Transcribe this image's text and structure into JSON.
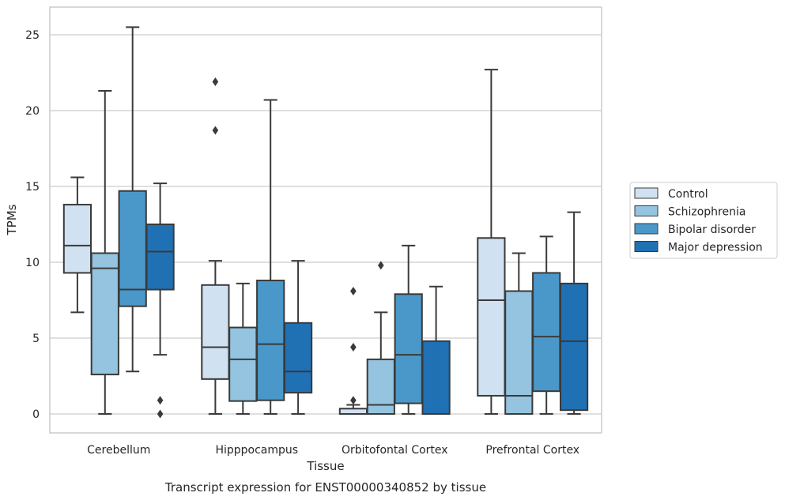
{
  "chart_data": {
    "type": "boxplot",
    "caption": "Transcript expression for ENST00000340852 by tissue",
    "xlabel": "Tissue",
    "ylabel": "TPMs",
    "ylim": [
      -1.2,
      26.8
    ],
    "yticks": [
      0,
      5,
      10,
      15,
      20,
      25
    ],
    "grid": "horizontal",
    "legend_position": "right",
    "categories": [
      "Cerebellum",
      "Hipppocampus",
      "Orbitofontal Cortex",
      "Prefrontal Cortex"
    ],
    "series": [
      {
        "name": "Control",
        "color": "#d0e1f2",
        "boxes": [
          {
            "whislo": 6.7,
            "q1": 9.3,
            "med": 11.1,
            "q3": 13.8,
            "whishi": 15.6,
            "fliers": []
          },
          {
            "whislo": 0.0,
            "q1": 2.3,
            "med": 4.4,
            "q3": 8.5,
            "whishi": 10.1,
            "fliers": [
              18.7,
              21.9
            ]
          },
          {
            "whislo": 0.0,
            "q1": 0.0,
            "med": 0.0,
            "q3": 0.35,
            "whishi": 0.6,
            "fliers": [
              0.9,
              4.4,
              8.1
            ]
          },
          {
            "whislo": 0.0,
            "q1": 1.2,
            "med": 7.5,
            "q3": 11.6,
            "whishi": 22.7,
            "fliers": []
          }
        ]
      },
      {
        "name": "Schizophrenia",
        "color": "#94c4df",
        "boxes": [
          {
            "whislo": 0.0,
            "q1": 2.6,
            "med": 9.6,
            "q3": 10.6,
            "whishi": 21.3,
            "fliers": []
          },
          {
            "whislo": 0.0,
            "q1": 0.85,
            "med": 3.6,
            "q3": 5.7,
            "whishi": 8.6,
            "fliers": []
          },
          {
            "whislo": 0.0,
            "q1": 0.0,
            "med": 0.6,
            "q3": 3.6,
            "whishi": 6.7,
            "fliers": [
              9.8
            ]
          },
          {
            "whislo": 0.0,
            "q1": 0.0,
            "med": 1.2,
            "q3": 8.1,
            "whishi": 10.6,
            "fliers": []
          }
        ]
      },
      {
        "name": "Bipolar disorder",
        "color": "#4a98c9",
        "boxes": [
          {
            "whislo": 2.8,
            "q1": 7.1,
            "med": 8.2,
            "q3": 14.7,
            "whishi": 25.5,
            "fliers": []
          },
          {
            "whislo": 0.0,
            "q1": 0.9,
            "med": 4.6,
            "q3": 8.8,
            "whishi": 20.7,
            "fliers": []
          },
          {
            "whislo": 0.0,
            "q1": 0.7,
            "med": 3.9,
            "q3": 7.9,
            "whishi": 11.1,
            "fliers": []
          },
          {
            "whislo": 0.0,
            "q1": 1.5,
            "med": 5.1,
            "q3": 9.3,
            "whishi": 11.7,
            "fliers": []
          }
        ]
      },
      {
        "name": "Major depression",
        "color": "#2070b4",
        "boxes": [
          {
            "whislo": 3.9,
            "q1": 8.2,
            "med": 10.7,
            "q3": 12.5,
            "whishi": 15.2,
            "fliers": [
              0.0,
              0.9
            ]
          },
          {
            "whislo": 0.0,
            "q1": 1.4,
            "med": 2.8,
            "q3": 6.0,
            "whishi": 10.1,
            "fliers": []
          },
          {
            "whislo": 0.0,
            "q1": 0.0,
            "med": 0.0,
            "q3": 4.8,
            "whishi": 8.4,
            "fliers": []
          },
          {
            "whislo": 0.0,
            "q1": 0.25,
            "med": 4.8,
            "q3": 8.6,
            "whishi": 13.3,
            "fliers": []
          }
        ]
      }
    ]
  }
}
